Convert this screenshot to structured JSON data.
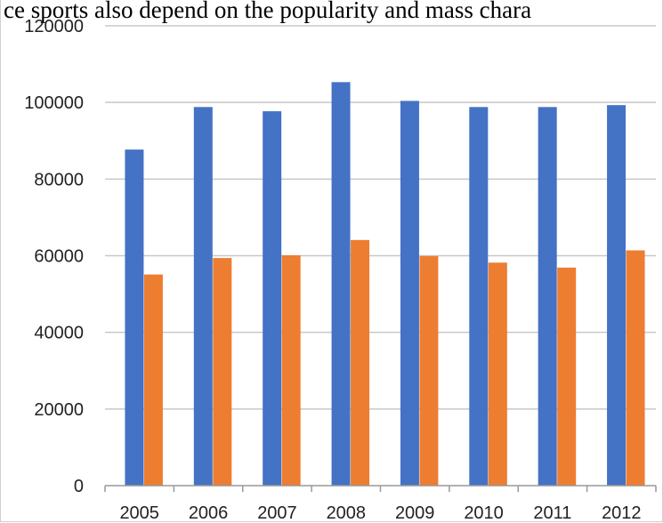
{
  "caption": "ce sports also depend on the popularity and mass chara",
  "colors": {
    "series1": "#4472C4",
    "series2": "#ED7D31",
    "grid": "#c8c8c8",
    "axis": "#999999"
  },
  "chart_data": {
    "type": "bar",
    "title": "",
    "xlabel": "",
    "ylabel": "",
    "categories": [
      "2005",
      "2006",
      "2007",
      "2008",
      "2009",
      "2010",
      "2011",
      "2012"
    ],
    "series": [
      {
        "values": [
          87700,
          98800,
          97700,
          105300,
          100400,
          98800,
          98800,
          99300
        ]
      },
      {
        "values": [
          55100,
          59400,
          60100,
          64100,
          59900,
          58200,
          56900,
          61400
        ]
      }
    ],
    "ylim": [
      0,
      120000
    ],
    "yticks": [
      "0",
      "20000",
      "40000",
      "60000",
      "80000",
      "100000",
      "120000"
    ],
    "grid": true,
    "legend": "none"
  }
}
